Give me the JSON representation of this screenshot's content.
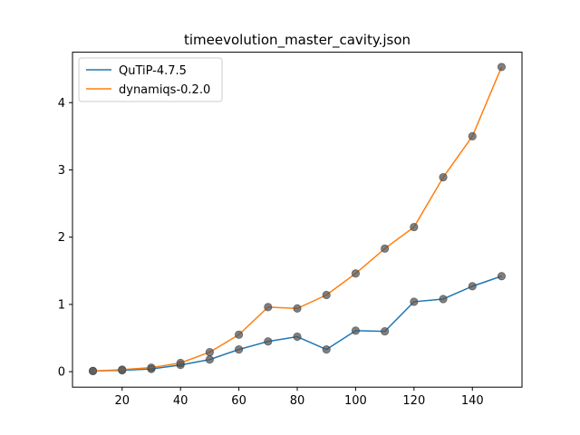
{
  "chart_data": {
    "type": "line",
    "title": "timeevolution_master_cavity.json",
    "xlabel": "",
    "ylabel": "",
    "x": [
      10,
      20,
      30,
      40,
      50,
      60,
      70,
      80,
      90,
      100,
      110,
      120,
      130,
      140,
      150
    ],
    "xlim": [
      3,
      157
    ],
    "ylim": [
      -0.23,
      4.75
    ],
    "xticks": [
      20,
      40,
      60,
      80,
      100,
      120,
      140
    ],
    "yticks": [
      0,
      1,
      2,
      3,
      4
    ],
    "grid": false,
    "legend_position": "top-left",
    "marker_color": "#555555",
    "series": [
      {
        "name": "QuTiP-4.7.5",
        "color": "#1f77b4",
        "values": [
          0.01,
          0.02,
          0.04,
          0.1,
          0.18,
          0.33,
          0.45,
          0.52,
          0.33,
          0.61,
          0.6,
          1.04,
          1.08,
          1.27,
          1.42
        ]
      },
      {
        "name": "dynamiqs-0.2.0",
        "color": "#ff7f0e",
        "values": [
          0.01,
          0.03,
          0.06,
          0.13,
          0.29,
          0.55,
          0.96,
          0.94,
          1.14,
          1.46,
          1.83,
          2.15,
          2.89,
          3.5,
          4.53
        ]
      }
    ]
  }
}
